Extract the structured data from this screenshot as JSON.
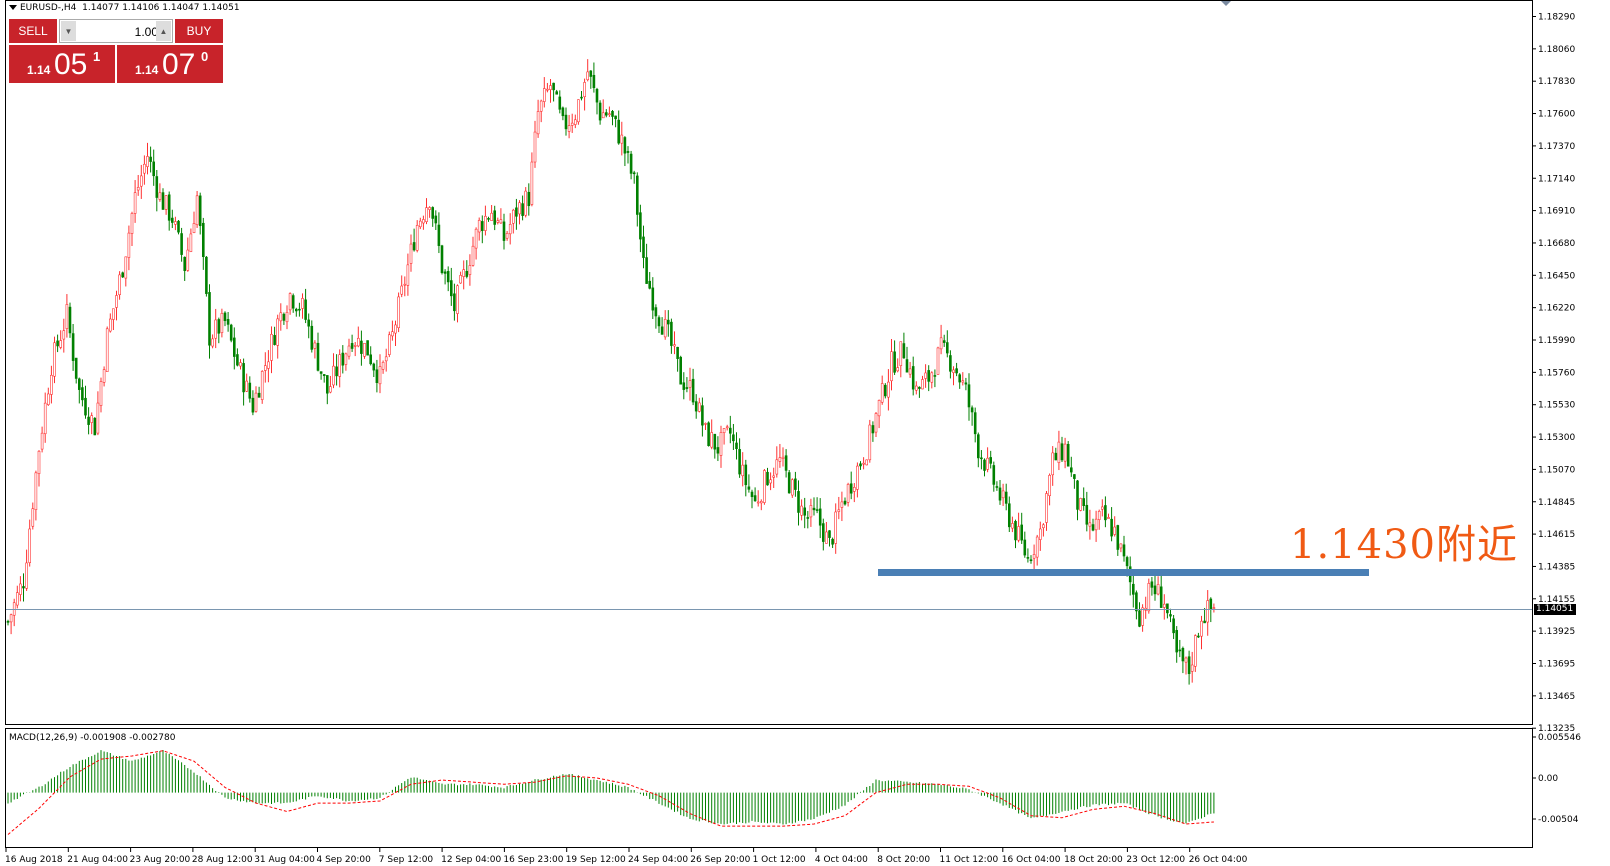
{
  "header": {
    "symbol": "EURUSD-,H4",
    "ohlc": "1.14077 1.14106 1.14047 1.14051"
  },
  "trade_panel": {
    "sell_label": "SELL",
    "buy_label": "BUY",
    "lot_value": "1.00",
    "sell_price_prefix": "1.14",
    "sell_price_big": "05",
    "sell_price_sup": "1",
    "buy_price_prefix": "1.14",
    "buy_price_big": "07",
    "buy_price_sup": "0"
  },
  "annotation": "1.1430附近",
  "current_price_label": "1.14051",
  "macd_label": "MACD(12,26,9) -0.001908 -0.002780",
  "colors": {
    "bull": "#ff3030",
    "bear": "#008000",
    "support_line": "#4a7fb5",
    "annotation": "#f05a14",
    "panel_red": "#c8232a",
    "signal": "#ff0000"
  },
  "chart_data": {
    "type": "candlestick",
    "title": "EURUSD-,H4",
    "x_ticks": [
      "16 Aug 2018",
      "21 Aug 04:00",
      "23 Aug 20:00",
      "28 Aug 12:00",
      "31 Aug 04:00",
      "4 Sep 20:00",
      "7 Sep 12:00",
      "12 Sep 04:00",
      "16 Sep 23:00",
      "19 Sep 12:00",
      "24 Sep 04:00",
      "26 Sep 20:00",
      "1 Oct 12:00",
      "4 Oct 04:00",
      "8 Oct 20:00",
      "11 Oct 12:00",
      "16 Oct 04:00",
      "18 Oct 20:00",
      "23 Oct 12:00",
      "26 Oct 04:00"
    ],
    "y_ticks": [
      "1.18290",
      "1.18060",
      "1.17830",
      "1.17600",
      "1.17370",
      "1.17140",
      "1.16910",
      "1.16680",
      "1.16450",
      "1.16220",
      "1.15990",
      "1.15760",
      "1.15530",
      "1.15300",
      "1.15070",
      "1.14845",
      "1.14615",
      "1.14385",
      "1.14155",
      "1.13925",
      "1.13695",
      "1.13465",
      "1.13235"
    ],
    "ylim": [
      1.1323,
      1.1829
    ],
    "support_level": 1.1428,
    "current_price": 1.14051,
    "close_path": [
      [
        0,
        1.1395
      ],
      [
        5,
        1.1425
      ],
      [
        10,
        1.152
      ],
      [
        14,
        1.158
      ],
      [
        19,
        1.1615
      ],
      [
        23,
        1.156
      ],
      [
        28,
        1.1535
      ],
      [
        32,
        1.16
      ],
      [
        37,
        1.165
      ],
      [
        41,
        1.17
      ],
      [
        45,
        1.173
      ],
      [
        49,
        1.17
      ],
      [
        53,
        1.1685
      ],
      [
        57,
        1.165
      ],
      [
        61,
        1.17
      ],
      [
        65,
        1.16
      ],
      [
        70,
        1.161
      ],
      [
        74,
        1.158
      ],
      [
        79,
        1.155
      ],
      [
        83,
        1.158
      ],
      [
        87,
        1.161
      ],
      [
        91,
        1.163
      ],
      [
        95,
        1.162
      ],
      [
        99,
        1.159
      ],
      [
        103,
        1.156
      ],
      [
        107,
        1.158
      ],
      [
        111,
        1.16
      ],
      [
        116,
        1.159
      ],
      [
        120,
        1.157
      ],
      [
        124,
        1.16
      ],
      [
        128,
        1.164
      ],
      [
        132,
        1.168
      ],
      [
        136,
        1.17
      ],
      [
        140,
        1.165
      ],
      [
        144,
        1.162
      ],
      [
        148,
        1.165
      ],
      [
        152,
        1.168
      ],
      [
        156,
        1.169
      ],
      [
        160,
        1.167
      ],
      [
        164,
        1.169
      ],
      [
        168,
        1.17
      ],
      [
        171,
        1.176
      ],
      [
        175,
        1.178
      ],
      [
        179,
        1.175
      ],
      [
        183,
        1.176
      ],
      [
        187,
        1.179
      ],
      [
        191,
        1.176
      ],
      [
        194,
        1.176
      ],
      [
        198,
        1.174
      ],
      [
        202,
        1.171
      ],
      [
        205,
        1.165
      ],
      [
        209,
        1.162
      ],
      [
        213,
        1.16
      ],
      [
        217,
        1.157
      ],
      [
        221,
        1.156
      ],
      [
        225,
        1.153
      ],
      [
        229,
        1.152
      ],
      [
        233,
        1.153
      ],
      [
        237,
        1.15
      ],
      [
        241,
        1.148
      ],
      [
        245,
        1.15
      ],
      [
        249,
        1.151
      ],
      [
        253,
        1.149
      ],
      [
        257,
        1.147
      ],
      [
        261,
        1.147
      ],
      [
        265,
        1.145
      ],
      [
        269,
        1.148
      ],
      [
        273,
        1.15
      ],
      [
        277,
        1.152
      ],
      [
        281,
        1.155
      ],
      [
        285,
        1.158
      ],
      [
        289,
        1.159
      ],
      [
        293,
        1.156
      ],
      [
        297,
        1.157
      ],
      [
        301,
        1.159
      ],
      [
        305,
        1.158
      ],
      [
        309,
        1.156
      ],
      [
        313,
        1.152
      ],
      [
        317,
        1.15
      ],
      [
        321,
        1.148
      ],
      [
        325,
        1.146
      ],
      [
        329,
        1.144
      ],
      [
        333,
        1.146
      ],
      [
        337,
        1.151
      ],
      [
        341,
        1.152
      ],
      [
        345,
        1.148
      ],
      [
        349,
        1.146
      ],
      [
        353,
        1.147
      ],
      [
        357,
        1.146
      ],
      [
        361,
        1.143
      ],
      [
        365,
        1.14
      ],
      [
        369,
        1.142
      ],
      [
        373,
        1.141
      ],
      [
        377,
        1.137
      ],
      [
        381,
        1.136
      ],
      [
        385,
        1.14
      ],
      [
        389,
        1.1405
      ]
    ],
    "macd_ylim": [
      -0.005,
      0.0055
    ],
    "macd_ticks": [
      "0.005546",
      "0.00",
      "-0.00504"
    ],
    "macd_path": [
      [
        0,
        -0.001
      ],
      [
        10,
        0.0005
      ],
      [
        20,
        0.0025
      ],
      [
        30,
        0.004
      ],
      [
        40,
        0.003
      ],
      [
        50,
        0.004
      ],
      [
        60,
        0.002
      ],
      [
        70,
        -0.0005
      ],
      [
        80,
        -0.001
      ],
      [
        90,
        -0.001
      ],
      [
        100,
        -0.0003
      ],
      [
        110,
        -0.0008
      ],
      [
        120,
        -0.0005
      ],
      [
        130,
        0.0015
      ],
      [
        140,
        0.0008
      ],
      [
        150,
        0.0008
      ],
      [
        160,
        0.0005
      ],
      [
        170,
        0.0012
      ],
      [
        180,
        0.0018
      ],
      [
        190,
        0.0012
      ],
      [
        200,
        0.0005
      ],
      [
        210,
        -0.001
      ],
      [
        220,
        -0.0025
      ],
      [
        230,
        -0.003
      ],
      [
        240,
        -0.0028
      ],
      [
        250,
        -0.003
      ],
      [
        260,
        -0.0025
      ],
      [
        270,
        -0.0012
      ],
      [
        280,
        0.0012
      ],
      [
        290,
        0.001
      ],
      [
        300,
        0.0008
      ],
      [
        310,
        0.0003
      ],
      [
        320,
        -0.001
      ],
      [
        330,
        -0.0025
      ],
      [
        340,
        -0.0018
      ],
      [
        350,
        -0.0012
      ],
      [
        360,
        -0.001
      ],
      [
        370,
        -0.0022
      ],
      [
        380,
        -0.003
      ],
      [
        389,
        -0.0019
      ]
    ],
    "signal_path": [
      [
        0,
        -0.004
      ],
      [
        10,
        -0.0015
      ],
      [
        20,
        0.0015
      ],
      [
        30,
        0.0032
      ],
      [
        40,
        0.0035
      ],
      [
        50,
        0.004
      ],
      [
        60,
        0.003
      ],
      [
        70,
        0.0005
      ],
      [
        80,
        -0.001
      ],
      [
        90,
        -0.0018
      ],
      [
        100,
        -0.001
      ],
      [
        110,
        -0.001
      ],
      [
        120,
        -0.0008
      ],
      [
        130,
        0.0008
      ],
      [
        140,
        0.0012
      ],
      [
        150,
        0.001
      ],
      [
        160,
        0.0008
      ],
      [
        170,
        0.001
      ],
      [
        180,
        0.0016
      ],
      [
        190,
        0.0014
      ],
      [
        200,
        0.0008
      ],
      [
        210,
        -0.0003
      ],
      [
        220,
        -0.002
      ],
      [
        230,
        -0.0032
      ],
      [
        240,
        -0.0032
      ],
      [
        250,
        -0.0032
      ],
      [
        260,
        -0.003
      ],
      [
        270,
        -0.0022
      ],
      [
        280,
        0.0
      ],
      [
        290,
        0.0008
      ],
      [
        300,
        0.0008
      ],
      [
        310,
        0.0006
      ],
      [
        320,
        -0.0005
      ],
      [
        330,
        -0.0022
      ],
      [
        340,
        -0.0024
      ],
      [
        350,
        -0.0016
      ],
      [
        360,
        -0.0013
      ],
      [
        370,
        -0.002
      ],
      [
        380,
        -0.003
      ],
      [
        389,
        -0.0028
      ]
    ]
  }
}
